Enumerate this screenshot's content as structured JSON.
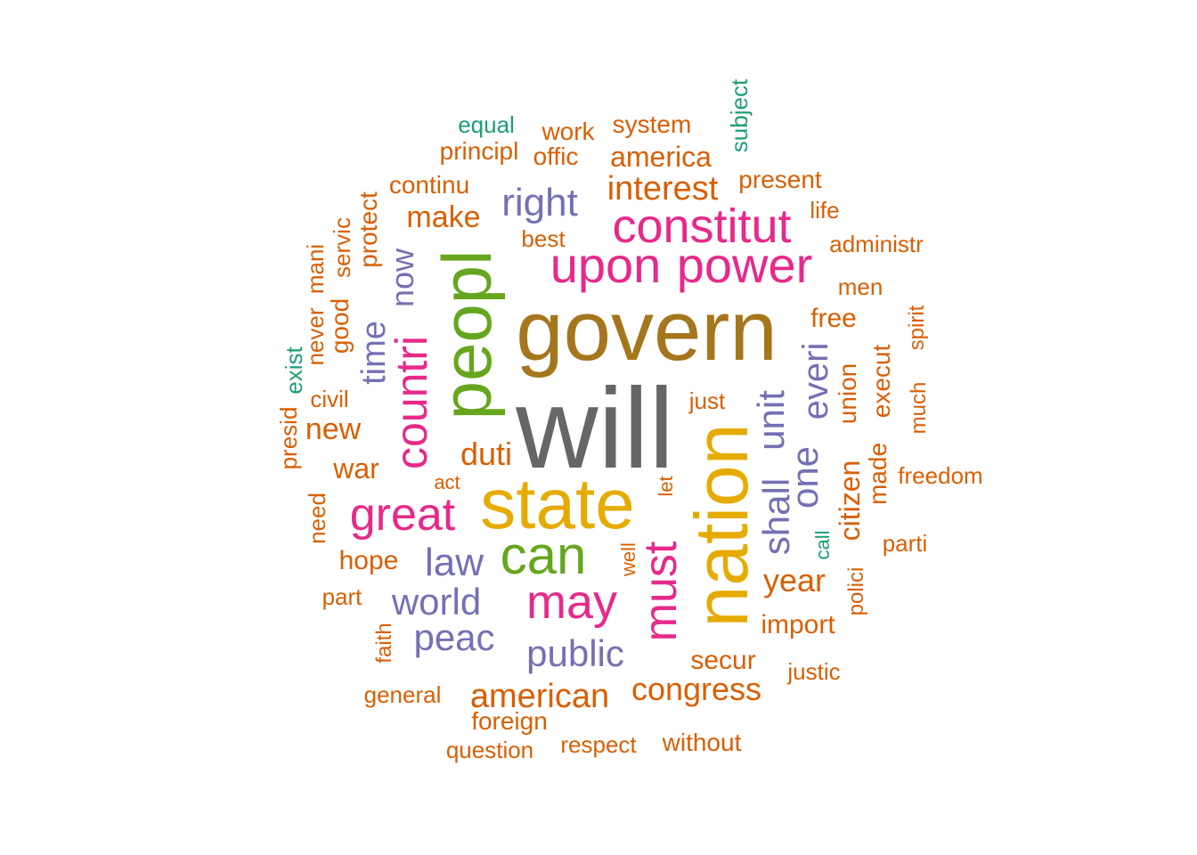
{
  "palette": {
    "teal": "#1b9e77",
    "orange": "#d95f02",
    "purple": "#7570b3",
    "pink": "#e7298a",
    "green": "#66a61e",
    "gold": "#e6ab02",
    "brown": "#a6761d",
    "gray": "#666666"
  },
  "words": [
    {
      "text": "will",
      "color": "gray"
    },
    {
      "text": "govern",
      "color": "brown"
    },
    {
      "text": "state",
      "color": "gold"
    },
    {
      "text": "nation",
      "color": "gold"
    },
    {
      "text": "peopl",
      "color": "green"
    },
    {
      "text": "upon",
      "color": "pink"
    },
    {
      "text": "power",
      "color": "pink"
    },
    {
      "text": "constitut",
      "color": "pink"
    },
    {
      "text": "can",
      "color": "green"
    },
    {
      "text": "may",
      "color": "pink"
    },
    {
      "text": "countri",
      "color": "pink"
    },
    {
      "text": "great",
      "color": "pink"
    },
    {
      "text": "must",
      "color": "pink"
    },
    {
      "text": "right",
      "color": "purple"
    },
    {
      "text": "law",
      "color": "purple"
    },
    {
      "text": "world",
      "color": "purple"
    },
    {
      "text": "interest",
      "color": "orange"
    },
    {
      "text": "peac",
      "color": "purple"
    },
    {
      "text": "public",
      "color": "purple"
    },
    {
      "text": "shall",
      "color": "purple"
    },
    {
      "text": "unit",
      "color": "purple"
    },
    {
      "text": "one",
      "color": "purple"
    },
    {
      "text": "everi",
      "color": "purple"
    },
    {
      "text": "american",
      "color": "orange"
    },
    {
      "text": "congress",
      "color": "orange"
    },
    {
      "text": "time",
      "color": "purple"
    },
    {
      "text": "now",
      "color": "purple"
    },
    {
      "text": "make",
      "color": "orange"
    },
    {
      "text": "america",
      "color": "orange"
    },
    {
      "text": "duti",
      "color": "orange"
    },
    {
      "text": "year",
      "color": "orange"
    },
    {
      "text": "citizen",
      "color": "orange"
    },
    {
      "text": "new",
      "color": "orange"
    },
    {
      "text": "war",
      "color": "orange"
    },
    {
      "text": "hope",
      "color": "orange"
    },
    {
      "text": "secur",
      "color": "orange"
    },
    {
      "text": "free",
      "color": "orange"
    },
    {
      "text": "union",
      "color": "orange"
    },
    {
      "text": "execut",
      "color": "orange"
    },
    {
      "text": "made",
      "color": "orange"
    },
    {
      "text": "import",
      "color": "orange"
    },
    {
      "text": "system",
      "color": "orange"
    },
    {
      "text": "work",
      "color": "orange"
    },
    {
      "text": "offic",
      "color": "orange"
    },
    {
      "text": "principl",
      "color": "orange"
    },
    {
      "text": "equal",
      "color": "teal"
    },
    {
      "text": "subject",
      "color": "teal"
    },
    {
      "text": "present",
      "color": "orange"
    },
    {
      "text": "continu",
      "color": "orange"
    },
    {
      "text": "life",
      "color": "orange"
    },
    {
      "text": "best",
      "color": "orange"
    },
    {
      "text": "administr",
      "color": "orange"
    },
    {
      "text": "men",
      "color": "orange"
    },
    {
      "text": "protect",
      "color": "orange"
    },
    {
      "text": "servic",
      "color": "orange"
    },
    {
      "text": "good",
      "color": "orange"
    },
    {
      "text": "mani",
      "color": "orange"
    },
    {
      "text": "never",
      "color": "orange"
    },
    {
      "text": "exist",
      "color": "teal"
    },
    {
      "text": "civil",
      "color": "orange"
    },
    {
      "text": "presid",
      "color": "orange"
    },
    {
      "text": "spirit",
      "color": "orange"
    },
    {
      "text": "much",
      "color": "orange"
    },
    {
      "text": "just",
      "color": "orange"
    },
    {
      "text": "freedom",
      "color": "orange"
    },
    {
      "text": "let",
      "color": "orange"
    },
    {
      "text": "act",
      "color": "orange"
    },
    {
      "text": "need",
      "color": "orange"
    },
    {
      "text": "well",
      "color": "orange"
    },
    {
      "text": "call",
      "color": "teal"
    },
    {
      "text": "parti",
      "color": "orange"
    },
    {
      "text": "polici",
      "color": "orange"
    },
    {
      "text": "part",
      "color": "orange"
    },
    {
      "text": "faith",
      "color": "orange"
    },
    {
      "text": "justic",
      "color": "orange"
    },
    {
      "text": "general",
      "color": "orange"
    },
    {
      "text": "foreign",
      "color": "orange"
    },
    {
      "text": "question",
      "color": "orange"
    },
    {
      "text": "respect",
      "color": "orange"
    },
    {
      "text": "without",
      "color": "orange"
    }
  ]
}
